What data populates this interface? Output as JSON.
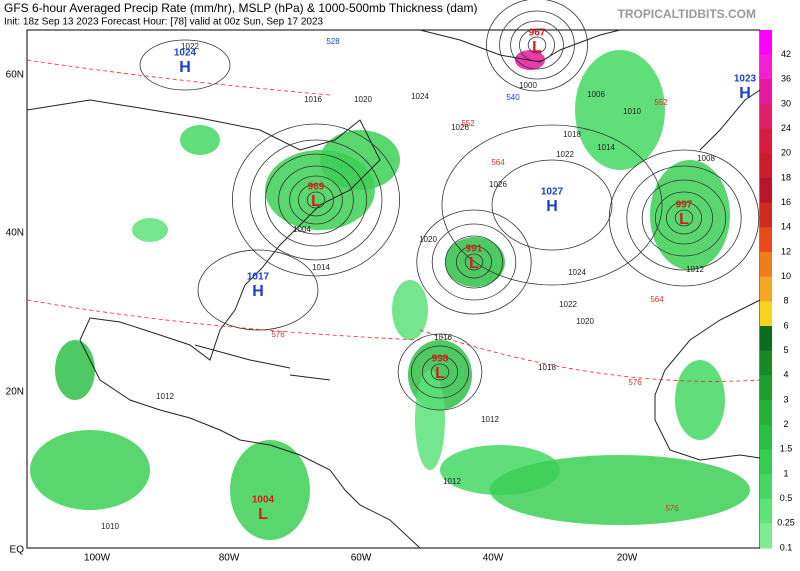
{
  "header": {
    "line1": "GFS 6-hour Averaged Precip Rate (mm/hr), MSLP (hPa) & 1000-500mb Thickness (dam)",
    "line2": "Init: 18z Sep 13 2023   Forecast Hour: [78]   valid at 00z Sun, Sep 17 2023",
    "site": "TROPICALTIDBITS.COM"
  },
  "axes": {
    "lat": [
      "60N",
      "40N",
      "20N",
      "EQ"
    ],
    "lon": [
      "100W",
      "80W",
      "60W",
      "40W",
      "20W"
    ]
  },
  "centers": [
    {
      "letter": "H",
      "value": "1024"
    },
    {
      "letter": "H",
      "value": "1017"
    },
    {
      "letter": "H",
      "value": "1027"
    },
    {
      "letter": "H",
      "value": "1023"
    },
    {
      "letter": "L",
      "value": "967"
    },
    {
      "letter": "L",
      "value": "969"
    },
    {
      "letter": "L",
      "value": "991"
    },
    {
      "letter": "L",
      "value": "998"
    },
    {
      "letter": "L",
      "value": "997"
    },
    {
      "letter": "L",
      "value": "1004"
    }
  ],
  "contour_labels": [
    "1022",
    "1016",
    "1020",
    "1024",
    "1026",
    "1018",
    "1022",
    "1026",
    "1020",
    "1024",
    "1022",
    "1020",
    "1018",
    "1016",
    "1012",
    "1012",
    "1010",
    "1012",
    "1014",
    "1004",
    "1008",
    "1012",
    "1000",
    "1006",
    "1010",
    "1014",
    "576",
    "576",
    "576",
    "564",
    "564",
    "552",
    "552",
    "540",
    "528"
  ],
  "colorbar": {
    "levels": [
      "42",
      "36",
      "30",
      "24",
      "20",
      "18",
      "16",
      "14",
      "12",
      "10",
      "8",
      "6",
      "5",
      "4",
      "3",
      "2",
      "1.5",
      "1",
      "0.5",
      "0.25",
      "0.1"
    ],
    "colors": [
      "#ff00ff",
      "#f21fd6",
      "#e8189e",
      "#e01e6a",
      "#d81b3c",
      "#cc1b2b",
      "#b8142a",
      "#d22a1e",
      "#e64a19",
      "#f07d1a",
      "#f5a623",
      "#f7d21e",
      "#0a6e1e",
      "#168a28",
      "#1e9e31",
      "#22b03a",
      "#28c044",
      "#32cc50",
      "#44d862",
      "#5ee27a",
      "#7eeb95"
    ]
  }
}
